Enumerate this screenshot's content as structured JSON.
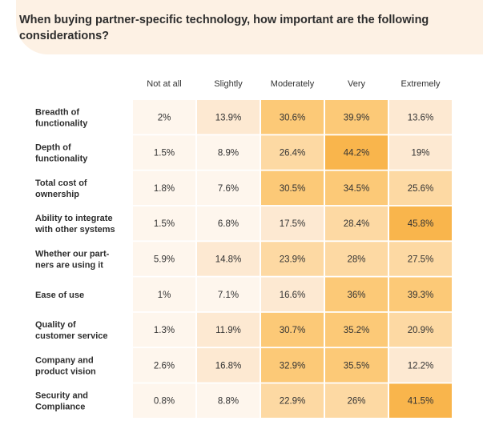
{
  "chart_data": {
    "type": "heatmap",
    "title": "When buying partner-specific technology, how important are the following considerations?",
    "columns": [
      "Not at all",
      "Slightly",
      "Moderately",
      "Very",
      "Extremely"
    ],
    "rows": [
      {
        "label": [
          "Breadth of",
          "functionality"
        ],
        "values": [
          2,
          13.9,
          30.6,
          39.9,
          13.6
        ]
      },
      {
        "label": [
          "Depth of",
          "functionality"
        ],
        "values": [
          1.5,
          8.9,
          26.4,
          44.2,
          19
        ]
      },
      {
        "label": [
          "Total cost of",
          "ownership"
        ],
        "values": [
          1.8,
          7.6,
          30.5,
          34.5,
          25.6
        ]
      },
      {
        "label": [
          "Ability to integrate",
          "with other systems"
        ],
        "values": [
          1.5,
          6.8,
          17.5,
          28.4,
          45.8
        ]
      },
      {
        "label": [
          "Whether our part-",
          "ners are using it"
        ],
        "values": [
          5.9,
          14.8,
          23.9,
          28,
          27.5
        ]
      },
      {
        "label": [
          "Ease of use"
        ],
        "values": [
          1,
          7.1,
          16.6,
          36,
          39.3
        ]
      },
      {
        "label": [
          "Quality of",
          "customer service"
        ],
        "values": [
          1.3,
          11.9,
          30.7,
          35.2,
          20.9
        ]
      },
      {
        "label": [
          "Company and",
          "product vision"
        ],
        "values": [
          2.6,
          16.8,
          32.9,
          35.5,
          12.2
        ]
      },
      {
        "label": [
          "Security and",
          "Compliance"
        ],
        "values": [
          0.8,
          8.8,
          22.9,
          26,
          41.5
        ]
      }
    ],
    "value_suffix": "%",
    "colors": {
      "low": "#fef6ed",
      "light": "#fde9d2",
      "mid": "#fdd9a3",
      "high": "#fcc977",
      "top": "#f9b54c"
    }
  }
}
